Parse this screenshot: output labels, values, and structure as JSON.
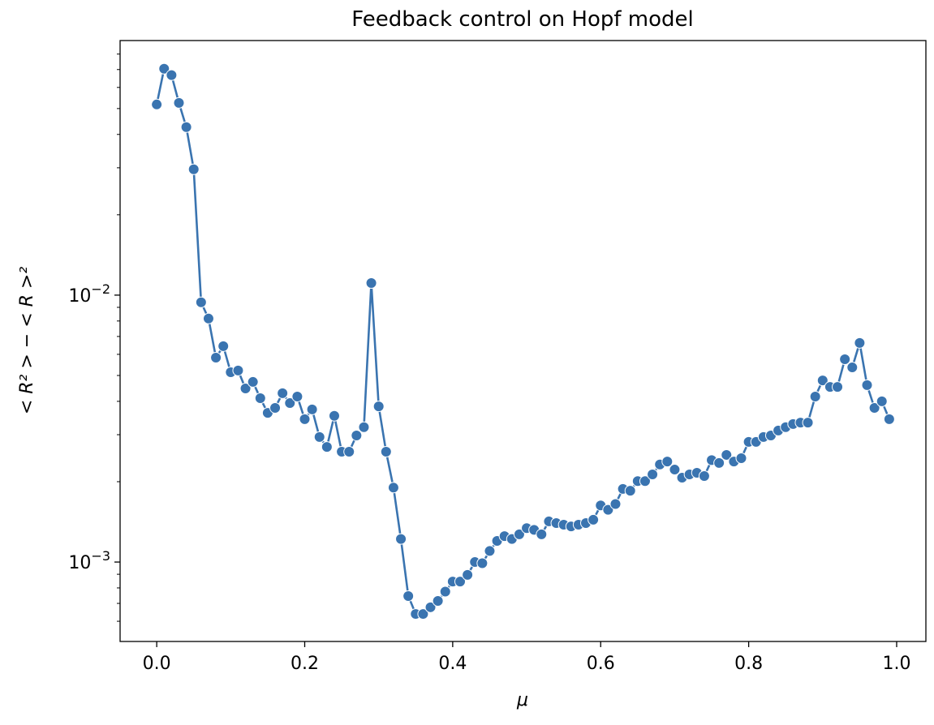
{
  "chart_data": {
    "type": "line",
    "title": "Feedback control on Hopf model",
    "x_label": "μ",
    "y_label": "< R² > − < R >²",
    "y_log": true,
    "color": "#3a74b0",
    "marker": "circle",
    "x": [
      0,
      0.01,
      0.02,
      0.03,
      0.04,
      0.05,
      0.06,
      0.07,
      0.08,
      0.09,
      0.1,
      0.11,
      0.12,
      0.13,
      0.14,
      0.15,
      0.16,
      0.17,
      0.18,
      0.19,
      0.2,
      0.21,
      0.22,
      0.23,
      0.24,
      0.25,
      0.26,
      0.27,
      0.28,
      0.29,
      0.3,
      0.31,
      0.32,
      0.33,
      0.34,
      0.35,
      0.36,
      0.37,
      0.38,
      0.39,
      0.4,
      0.41,
      0.42,
      0.43,
      0.44,
      0.45,
      0.46,
      0.47,
      0.48,
      0.49,
      0.5,
      0.51,
      0.52,
      0.53,
      0.54,
      0.55,
      0.56,
      0.57,
      0.58,
      0.59,
      0.6,
      0.61,
      0.62,
      0.63,
      0.64,
      0.65,
      0.66,
      0.67,
      0.68,
      0.69,
      0.7,
      0.71,
      0.72,
      0.73,
      0.74,
      0.75,
      0.76,
      0.77,
      0.78,
      0.79,
      0.8,
      0.81,
      0.82,
      0.83,
      0.84,
      0.85,
      0.86,
      0.87,
      0.88,
      0.89,
      0.9,
      0.91,
      0.92,
      0.93,
      0.94,
      0.95,
      0.96,
      0.97,
      0.98,
      0.99
    ],
    "values": [
      0.0518,
      0.0705,
      0.0667,
      0.0525,
      0.0426,
      0.0296,
      0.0094,
      0.00817,
      0.00583,
      0.00644,
      0.00514,
      0.00522,
      0.00447,
      0.00473,
      0.00411,
      0.00362,
      0.00378,
      0.00429,
      0.00394,
      0.00417,
      0.00343,
      0.00373,
      0.00294,
      0.0027,
      0.00353,
      0.00259,
      0.00259,
      0.00298,
      0.0032,
      0.0111,
      0.00383,
      0.00259,
      0.0019,
      0.00122,
      0.000746,
      0.000639,
      0.000639,
      0.000677,
      0.000715,
      0.000775,
      0.000845,
      0.000845,
      0.000895,
      0.001,
      0.00099,
      0.0011,
      0.0012,
      0.00125,
      0.00122,
      0.00127,
      0.00134,
      0.00132,
      0.00127,
      0.00142,
      0.0014,
      0.00138,
      0.00136,
      0.00138,
      0.0014,
      0.00144,
      0.00163,
      0.00157,
      0.00165,
      0.00188,
      0.00185,
      0.00201,
      0.00201,
      0.00213,
      0.00232,
      0.00238,
      0.00222,
      0.00207,
      0.00213,
      0.00216,
      0.0021,
      0.00241,
      0.00235,
      0.00252,
      0.00238,
      0.00245,
      0.00282,
      0.00282,
      0.00294,
      0.00298,
      0.00311,
      0.0032,
      0.00329,
      0.00333,
      0.00333,
      0.00417,
      0.00479,
      0.00453,
      0.00453,
      0.00575,
      0.00536,
      0.00662,
      0.0046,
      0.00378,
      0.004,
      0.00343
    ],
    "xlim": [
      -0.0495,
      1.0395
    ],
    "xticks": [
      {
        "value": 0,
        "label": "0.0"
      },
      0.2,
      0.4,
      0.6,
      0.8,
      {
        "value": 1,
        "label": "1.0"
      }
    ],
    "ylim": [
      0.000504,
      0.0899
    ],
    "yticks": [
      {
        "value": 0.001,
        "label": {
          "base": "10",
          "exponent": "−3"
        }
      },
      {
        "value": 0.01,
        "label": {
          "base": "10",
          "exponent": "−2"
        }
      }
    ],
    "yminorticks": [
      0.0006,
      0.0007,
      0.0008,
      0.0009,
      0.002,
      0.003,
      0.004,
      0.005,
      0.006,
      0.007,
      0.008,
      0.009,
      0.02,
      0.03,
      0.04,
      0.05,
      0.06,
      0.07,
      0.08
    ]
  }
}
